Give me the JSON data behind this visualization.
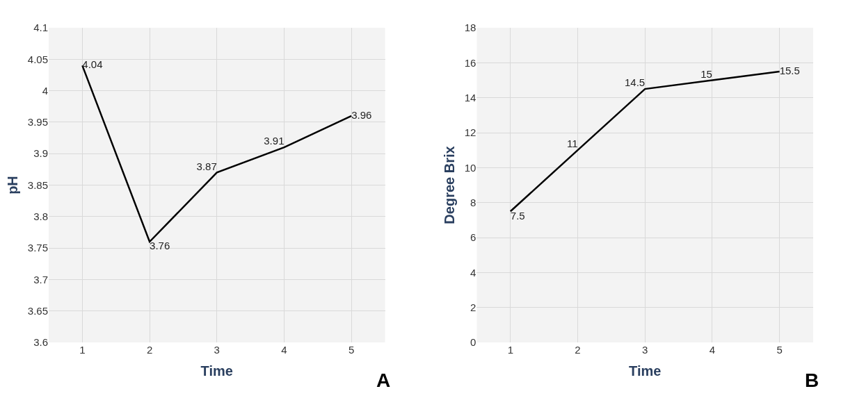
{
  "chart_data": [
    {
      "type": "line",
      "xlabel": "Time",
      "ylabel": "pH",
      "categories": [
        "1",
        "2",
        "3",
        "4",
        "5"
      ],
      "series": [
        {
          "color": "#000000",
          "values": [
            4.04,
            3.76,
            3.87,
            3.91,
            3.96
          ]
        }
      ],
      "ylim": [
        3.6,
        4.1
      ],
      "yticks": [
        3.6,
        3.65,
        3.7,
        3.75,
        3.8,
        3.85,
        3.9,
        3.95,
        4,
        4.05,
        4.1
      ],
      "grid": true,
      "data_labels": true,
      "marker": "none",
      "line_style": "solid",
      "annotations": [
        "A"
      ]
    },
    {
      "type": "line",
      "xlabel": "Time",
      "ylabel": "Degree Brix",
      "categories": [
        "1",
        "2",
        "3",
        "4",
        "5"
      ],
      "series": [
        {
          "color": "#000000",
          "values": [
            7.5,
            11,
            14.5,
            15,
            15.5
          ]
        }
      ],
      "ylim": [
        0,
        18
      ],
      "yticks": [
        0,
        2,
        4,
        6,
        8,
        10,
        12,
        14,
        16,
        18
      ],
      "grid": true,
      "data_labels": true,
      "marker": "none",
      "line_style": "solid",
      "annotations": [
        "B"
      ]
    }
  ]
}
